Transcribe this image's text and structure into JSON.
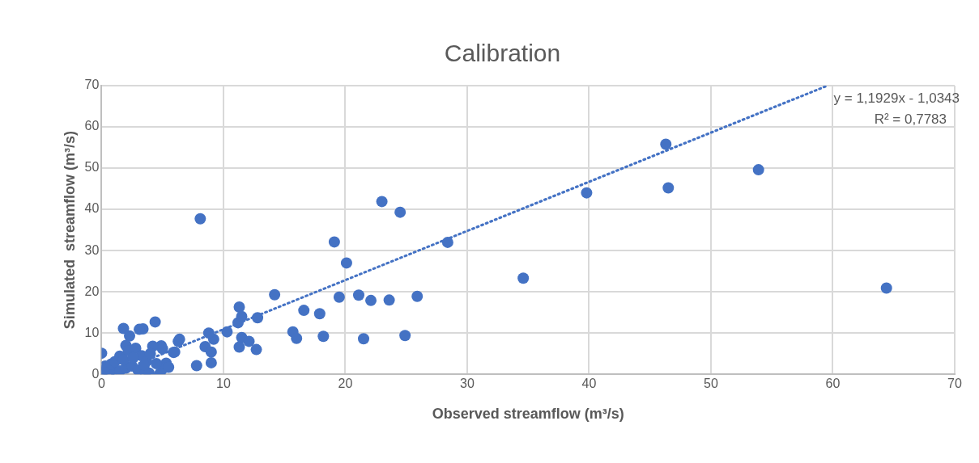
{
  "chart_data": {
    "type": "scatter",
    "title": "Calibration",
    "xlabel": "Observed streamflow (m³/s)",
    "ylabel": "Simulated  streamflow (m³/s)",
    "xlim": [
      0,
      70
    ],
    "ylim": [
      0,
      70
    ],
    "xticks": [
      0,
      10,
      20,
      30,
      40,
      50,
      60,
      70
    ],
    "yticks": [
      0,
      10,
      20,
      30,
      40,
      50,
      60,
      70
    ],
    "grid": true,
    "legend": false,
    "marker": "circle",
    "annotations": [
      "y = 1,1929x - 1,0343",
      "R² = 0,7783"
    ],
    "series": [
      {
        "type": "scatter",
        "color": "#4472c4",
        "x": [
          64.4,
          53.9,
          46.3,
          46.5,
          39.8,
          34.6,
          28.4,
          23.0,
          24.5,
          19.1,
          20.1,
          25.9,
          23.6,
          22.1,
          21.1,
          19.5,
          17.9,
          16.6,
          14.2,
          12.8,
          11.3,
          11.2,
          11.5,
          11.5,
          12.1,
          11.3,
          12.7,
          15.7,
          16.0,
          18.2,
          21.5,
          24.9,
          10.3,
          9.2,
          8.8,
          8.5,
          9.0,
          9.0,
          7.8,
          8.1,
          6.4,
          6.3,
          5.9,
          5.3,
          5.1,
          4.8,
          4.9,
          4.2,
          4.4,
          3.4,
          3.1,
          1.8,
          2.3,
          2.0,
          0.0,
          0.0,
          0.2,
          0.6,
          1.0,
          1.5,
          2.0,
          2.5,
          3.0,
          3.6,
          3.9,
          0.3,
          0.8,
          1.1,
          1.5,
          2.2,
          2.8,
          3.3,
          3.7,
          4.5,
          5.5,
          6.0,
          1.8,
          2.6,
          3.5,
          4.0,
          5.0
        ],
        "values": [
          20.9,
          49.6,
          55.8,
          45.2,
          44.0,
          23.3,
          32.0,
          41.9,
          39.3,
          32.1,
          27.0,
          18.9,
          18.0,
          17.9,
          19.2,
          18.7,
          14.7,
          15.5,
          19.3,
          13.7,
          16.3,
          12.5,
          14.0,
          8.9,
          8.0,
          6.6,
          6.0,
          10.3,
          8.7,
          9.2,
          8.6,
          9.4,
          10.3,
          8.5,
          10.0,
          6.7,
          5.4,
          2.8,
          2.1,
          37.7,
          8.5,
          8.0,
          5.3,
          2.7,
          1.5,
          0.2,
          6.9,
          6.8,
          12.7,
          11.0,
          10.9,
          11.1,
          9.3,
          7.0,
          5.1,
          0.4,
          0.9,
          0.2,
          1.2,
          0.8,
          1.5,
          2.0,
          1.0,
          0.4,
          0.3,
          2.0,
          2.5,
          3.1,
          4.4,
          5.7,
          6.3,
          4.5,
          3.2,
          2.6,
          1.7,
          5.4,
          3.5,
          4.0,
          2.2,
          5.0,
          6.2
        ]
      },
      {
        "type": "line",
        "color": "#4472c4",
        "line_style": "dotted",
        "marker": "none",
        "x": [
          0.87,
          59.55
        ],
        "values": [
          0,
          70.0
        ]
      }
    ]
  }
}
